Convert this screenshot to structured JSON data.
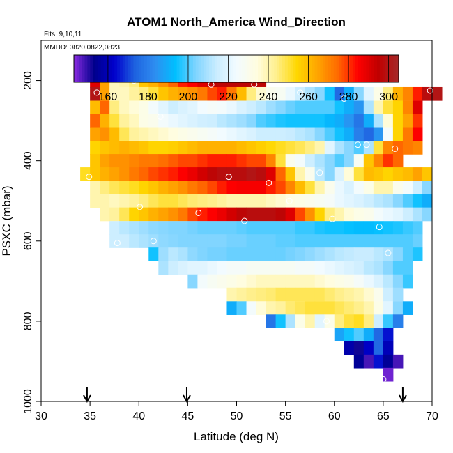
{
  "chart_data": {
    "type": "heatmap",
    "title": "ATOM1 North_America Wind_Direction",
    "flights_label": "Flts: 9,10,11",
    "dates_label": "MMDD: 0820,0822,0823",
    "xlabel": "Latitude (deg N)",
    "ylabel": "PSXC (mbar)",
    "xlim": [
      30,
      70
    ],
    "ylim": [
      1000,
      100
    ],
    "x_ticks": [
      30,
      35,
      40,
      45,
      50,
      55,
      60,
      65,
      70
    ],
    "y_ticks": [
      200,
      400,
      600,
      800,
      1000
    ],
    "colorbar": {
      "min": 143,
      "max": 305,
      "ticks": [
        160,
        180,
        200,
        220,
        240,
        260,
        280,
        300
      ],
      "palette": [
        "#8a2be2",
        "#00008b",
        "#0000cd",
        "#1e62e0",
        "#2e8ef0",
        "#00bfff",
        "#7fd4ff",
        "#c8ecff",
        "#f2fbff",
        "#fffde0",
        "#ffef8a",
        "#ffd700",
        "#ffa500",
        "#ff6a00",
        "#ff0000",
        "#c00000",
        "#a52a2a"
      ]
    },
    "cell_width_deg": 1,
    "cell_height_mbar": 33.3,
    "rows": [
      {
        "p": 200,
        "x0": 35,
        "values": [
          290,
          265,
          238,
          240,
          245,
          258,
          262,
          268,
          275,
          282,
          285,
          290,
          295,
          296,
          296,
          296,
          296,
          296
        ]
      },
      {
        "p": 233,
        "x0": 35,
        "values": [
          300,
          265,
          238,
          238,
          242,
          245,
          250,
          258,
          262,
          265,
          268,
          272,
          278,
          282,
          272,
          260,
          245,
          236,
          230,
          228,
          222,
          215,
          210,
          205,
          195,
          175,
          190,
          205,
          220,
          232,
          245,
          262,
          270,
          282,
          298,
          300
        ]
      },
      {
        "p": 267,
        "x0": 35,
        "values": [
          260,
          275,
          245,
          238,
          235,
          232,
          225,
          220,
          215,
          218,
          220,
          224,
          226,
          225,
          222,
          218,
          215,
          212,
          208,
          205,
          202,
          200,
          200,
          200,
          200,
          195,
          190,
          185,
          210,
          240,
          250,
          255,
          270,
          290
        ]
      },
      {
        "p": 300,
        "x0": 35,
        "values": [
          275,
          262,
          250,
          242,
          238,
          232,
          230,
          225,
          222,
          220,
          218,
          216,
          215,
          212,
          210,
          208,
          205,
          200,
          198,
          196,
          195,
          195,
          195,
          195,
          192,
          190,
          185,
          178,
          190,
          210,
          235,
          255,
          265,
          280
        ]
      },
      {
        "p": 333,
        "x0": 35,
        "values": [
          265,
          268,
          260,
          248,
          242,
          240,
          238,
          236,
          234,
          232,
          230,
          228,
          226,
          224,
          222,
          220,
          218,
          215,
          215,
          215,
          214,
          212,
          210,
          205,
          200,
          195,
          190,
          180,
          175,
          185,
          225,
          255,
          272,
          285
        ]
      },
      {
        "p": 367,
        "x0": 35,
        "values": [
          255,
          258,
          260,
          262,
          260,
          258,
          255,
          255,
          256,
          258,
          260,
          262,
          262,
          262,
          262,
          260,
          258,
          256,
          254,
          252,
          250,
          248,
          245,
          240,
          220,
          210,
          205,
          200,
          210,
          250,
          270,
          275,
          272,
          270
        ]
      },
      {
        "p": 400,
        "x0": 35,
        "values": [
          258,
          265,
          268,
          268,
          270,
          272,
          272,
          274,
          276,
          278,
          278,
          280,
          282,
          282,
          282,
          280,
          278,
          278,
          270,
          250,
          230,
          225,
          215,
          210,
          205,
          200,
          205,
          228,
          258,
          270,
          280,
          275
        ]
      },
      {
        "p": 433,
        "x0": 34,
        "values": [
          252,
          258,
          262,
          265,
          268,
          272,
          275,
          278,
          280,
          282,
          285,
          288,
          292,
          296,
          298,
          298,
          298,
          300,
          298,
          290,
          275,
          258,
          240,
          230,
          212,
          205,
          218,
          235,
          250,
          260,
          258,
          255,
          258,
          260,
          265,
          258
        ]
      },
      {
        "p": 467,
        "x0": 35,
        "values": [
          240,
          245,
          248,
          250,
          252,
          255,
          258,
          262,
          265,
          268,
          272,
          275,
          278,
          282,
          285,
          286,
          286,
          286,
          282,
          278,
          270,
          260,
          250,
          240,
          230,
          222,
          218,
          225,
          232,
          240,
          240,
          230,
          225,
          215,
          205
        ]
      },
      {
        "p": 500,
        "x0": 35,
        "values": [
          240,
          240,
          238,
          240,
          242,
          245,
          248,
          250,
          250,
          248,
          246,
          245,
          244,
          242,
          240,
          240,
          240,
          240,
          238,
          236,
          234,
          232,
          230,
          228,
          226,
          222,
          220,
          218,
          215,
          212,
          210,
          205,
          200,
          195,
          190
        ]
      },
      {
        "p": 533,
        "x0": 36,
        "values": [
          240,
          242,
          248,
          255,
          258,
          262,
          265,
          268,
          272,
          278,
          282,
          285,
          288,
          292,
          296,
          298,
          298,
          298,
          296,
          290,
          278,
          268,
          255,
          245,
          240,
          235,
          232,
          230,
          225,
          222,
          220,
          215,
          210,
          205
        ]
      },
      {
        "p": 567,
        "x0": 37,
        "values": [
          215,
          212,
          210,
          208,
          206,
          205,
          204,
          204,
          203,
          202,
          202,
          202,
          202,
          201,
          200,
          200,
          200,
          200,
          200,
          198,
          198,
          196,
          195,
          195,
          194,
          193,
          193,
          194,
          195,
          196,
          198,
          200
        ]
      },
      {
        "p": 600,
        "x0": 37,
        "values": [
          215,
          215,
          212,
          210,
          208,
          206,
          205,
          204,
          204,
          204,
          204,
          204,
          203,
          203,
          202,
          202,
          202,
          201,
          201,
          200,
          200,
          200,
          200,
          200,
          200,
          200,
          200,
          200,
          200,
          200,
          200,
          202
        ]
      },
      {
        "p": 633,
        "x0": 41,
        "values": [
          195,
          208,
          212,
          210,
          206,
          204,
          203,
          203,
          202,
          202,
          202,
          202,
          202,
          202,
          203,
          204,
          206,
          208,
          210,
          212,
          213,
          214,
          214,
          212,
          210,
          205,
          200,
          196
        ]
      },
      {
        "p": 667,
        "x0": 42,
        "values": [
          210,
          215,
          218,
          220,
          220,
          222,
          224,
          226,
          226,
          228,
          228,
          228,
          228,
          228,
          226,
          226,
          224,
          222,
          220,
          218,
          216,
          212,
          210,
          205,
          200,
          200
        ]
      },
      {
        "p": 700,
        "x0": 45,
        "values": [
          205,
          225,
          228,
          230,
          232,
          234,
          236,
          238,
          238,
          238,
          238,
          238,
          238,
          236,
          234,
          232,
          230,
          226,
          222,
          218,
          212,
          205,
          198
        ]
      },
      {
        "p": 733,
        "x0": 49,
        "values": [
          240,
          242,
          244,
          245,
          246,
          248,
          248,
          248,
          248,
          248,
          246,
          244,
          242,
          240,
          236,
          230,
          215,
          208
        ]
      },
      {
        "p": 767,
        "x0": 49,
        "values": [
          190,
          200,
          225,
          235,
          240,
          242,
          246,
          248,
          250,
          250,
          250,
          248,
          246,
          244,
          240,
          232,
          220,
          205,
          190
        ]
      },
      {
        "p": 800,
        "x0": 53,
        "values": [
          178,
          195,
          210,
          232,
          240,
          220,
          232,
          245,
          250,
          252,
          245,
          215,
          198,
          180
        ]
      },
      {
        "p": 833,
        "x0": 60,
        "values": [
          188,
          195,
          200,
          190,
          175,
          165
        ]
      },
      {
        "p": 867,
        "x0": 61,
        "values": [
          158,
          152,
          162,
          175,
          160
        ]
      },
      {
        "p": 900,
        "x0": 62,
        "values": [
          155,
          148,
          165,
          155,
          148
        ]
      },
      {
        "p": 933,
        "x0": 65,
        "values": [
          145
        ]
      }
    ],
    "circles": [
      [
        35.7,
        230
      ],
      [
        36.0,
        190
      ],
      [
        39.5,
        200
      ],
      [
        42.2,
        290
      ],
      [
        47.4,
        210
      ],
      [
        51.8,
        210
      ],
      [
        56.5,
        230
      ],
      [
        61.0,
        245
      ],
      [
        62.4,
        360
      ],
      [
        63.3,
        360
      ],
      [
        66.2,
        370
      ],
      [
        69.8,
        225
      ],
      [
        34.9,
        440
      ],
      [
        49.2,
        440
      ],
      [
        53.3,
        455
      ],
      [
        55.4,
        500
      ],
      [
        58.5,
        430
      ],
      [
        40.1,
        515
      ],
      [
        46.1,
        530
      ],
      [
        50.8,
        550
      ],
      [
        59.8,
        545
      ],
      [
        64.6,
        565
      ],
      [
        37.8,
        605
      ],
      [
        41.5,
        600
      ],
      [
        65.5,
        630
      ],
      [
        59.2,
        800
      ],
      [
        65.0,
        945
      ]
    ],
    "arrows": [
      34.7,
      44.9,
      67.0
    ]
  }
}
